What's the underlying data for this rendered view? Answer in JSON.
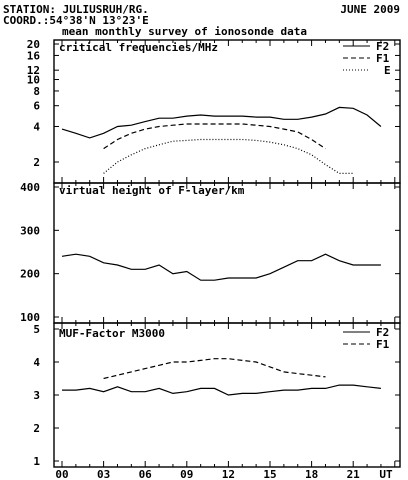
{
  "header": {
    "station": "STATION: JULIUSRUH/RG.",
    "date": "JUNE 2009",
    "coord": "COORD.:54°38'N 13°23'E",
    "subtitle": "mean monthly survey of ionosonde data"
  },
  "colors": {
    "line": "#000000",
    "background": "#ffffff"
  },
  "x_axis": {
    "tick_labels": [
      "00",
      "03",
      "06",
      "09",
      "12",
      "15",
      "18",
      "21",
      "UT"
    ],
    "tick_hours": [
      0,
      3,
      6,
      9,
      12,
      15,
      18,
      21,
      24
    ]
  },
  "chart_data": [
    {
      "type": "line",
      "title": "critical frequencies/MHz",
      "yscale": "log",
      "ylim": [
        1.5,
        20
      ],
      "yticks": [
        2,
        4,
        6,
        8,
        10,
        12,
        16,
        20
      ],
      "grid": false,
      "legend": "top-right",
      "series": [
        {
          "name": "F2",
          "dash": "solid",
          "x": [
            0,
            1,
            2,
            3,
            4,
            5,
            6,
            7,
            8,
            9,
            10,
            11,
            12,
            13,
            14,
            15,
            16,
            17,
            18,
            19,
            20,
            21,
            22,
            23
          ],
          "y": [
            3.8,
            3.5,
            3.2,
            3.5,
            4.0,
            4.1,
            4.4,
            4.7,
            4.7,
            4.9,
            5.0,
            4.9,
            4.9,
            4.9,
            4.8,
            4.8,
            4.6,
            4.6,
            4.8,
            5.1,
            5.8,
            5.7,
            5.0,
            4.0
          ]
        },
        {
          "name": "F1",
          "dash": "dashed",
          "x": [
            3,
            4,
            5,
            6,
            7,
            8,
            9,
            10,
            11,
            12,
            13,
            14,
            15,
            16,
            17,
            18,
            19
          ],
          "y": [
            2.6,
            3.1,
            3.5,
            3.8,
            4.0,
            4.1,
            4.2,
            4.2,
            4.2,
            4.2,
            4.2,
            4.1,
            4.0,
            3.8,
            3.6,
            3.1,
            2.6
          ]
        },
        {
          "name": "E",
          "dash": "dotted",
          "x": [
            3,
            4,
            5,
            6,
            7,
            8,
            9,
            10,
            11,
            12,
            13,
            14,
            15,
            16,
            17,
            18,
            19,
            20,
            21
          ],
          "y": [
            1.6,
            2.0,
            2.3,
            2.6,
            2.8,
            3.0,
            3.05,
            3.1,
            3.1,
            3.1,
            3.1,
            3.05,
            2.95,
            2.8,
            2.6,
            2.3,
            1.9,
            1.6,
            1.6
          ]
        }
      ]
    },
    {
      "type": "line",
      "title": "virtual height of F-layer/km",
      "yscale": "linear",
      "ylim": [
        100,
        400
      ],
      "yticks": [
        100,
        200,
        300,
        400
      ],
      "grid": false,
      "series": [
        {
          "name": "",
          "dash": "solid",
          "x": [
            0,
            1,
            2,
            3,
            4,
            5,
            6,
            7,
            8,
            9,
            10,
            11,
            12,
            13,
            14,
            15,
            16,
            17,
            18,
            19,
            20,
            21,
            22,
            23
          ],
          "y": [
            240,
            245,
            240,
            225,
            220,
            210,
            210,
            220,
            200,
            205,
            185,
            185,
            190,
            190,
            190,
            200,
            215,
            230,
            230,
            245,
            230,
            220,
            220,
            220
          ]
        }
      ]
    },
    {
      "type": "line",
      "title": "MUF-Factor M3000",
      "yscale": "linear",
      "ylim": [
        1,
        5
      ],
      "yticks": [
        1,
        2,
        3,
        4,
        5
      ],
      "grid": false,
      "legend": "top-right",
      "series": [
        {
          "name": "F2",
          "dash": "solid",
          "x": [
            0,
            1,
            2,
            3,
            4,
            5,
            6,
            7,
            8,
            9,
            10,
            11,
            12,
            13,
            14,
            15,
            16,
            17,
            18,
            19,
            20,
            21,
            22,
            23
          ],
          "y": [
            3.15,
            3.15,
            3.2,
            3.1,
            3.25,
            3.1,
            3.1,
            3.2,
            3.05,
            3.1,
            3.2,
            3.2,
            3.0,
            3.05,
            3.05,
            3.1,
            3.15,
            3.15,
            3.2,
            3.2,
            3.3,
            3.3,
            3.25,
            3.2
          ]
        },
        {
          "name": "F1",
          "dash": "dashed",
          "x": [
            3,
            4,
            5,
            6,
            7,
            8,
            9,
            10,
            11,
            12,
            13,
            14,
            15,
            16,
            17,
            18,
            19
          ],
          "y": [
            3.5,
            3.6,
            3.7,
            3.8,
            3.9,
            4.0,
            4.0,
            4.05,
            4.1,
            4.1,
            4.05,
            4.0,
            3.85,
            3.7,
            3.65,
            3.6,
            3.55
          ]
        }
      ]
    }
  ]
}
